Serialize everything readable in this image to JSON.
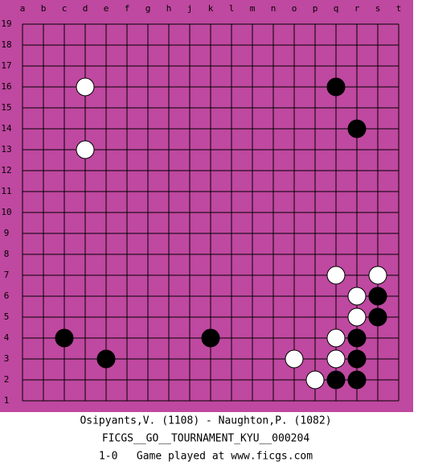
{
  "board": {
    "columns": [
      "a",
      "b",
      "c",
      "d",
      "e",
      "f",
      "g",
      "h",
      "j",
      "k",
      "l",
      "m",
      "n",
      "o",
      "p",
      "q",
      "r",
      "s",
      "t"
    ],
    "rows": [
      19,
      18,
      17,
      16,
      15,
      14,
      13,
      12,
      11,
      10,
      9,
      8,
      7,
      6,
      5,
      4,
      3,
      2,
      1
    ],
    "stones": [
      {
        "col": "d",
        "row": 16,
        "color": "white"
      },
      {
        "col": "d",
        "row": 13,
        "color": "white"
      },
      {
        "col": "q",
        "row": 16,
        "color": "black"
      },
      {
        "col": "r",
        "row": 14,
        "color": "black"
      },
      {
        "col": "q",
        "row": 7,
        "color": "white"
      },
      {
        "col": "s",
        "row": 7,
        "color": "white"
      },
      {
        "col": "r",
        "row": 6,
        "color": "white"
      },
      {
        "col": "s",
        "row": 6,
        "color": "black"
      },
      {
        "col": "r",
        "row": 5,
        "color": "white"
      },
      {
        "col": "s",
        "row": 5,
        "color": "black"
      },
      {
        "col": "c",
        "row": 4,
        "color": "black"
      },
      {
        "col": "k",
        "row": 4,
        "color": "black"
      },
      {
        "col": "q",
        "row": 4,
        "color": "white"
      },
      {
        "col": "r",
        "row": 4,
        "color": "black"
      },
      {
        "col": "e",
        "row": 3,
        "color": "black"
      },
      {
        "col": "o",
        "row": 3,
        "color": "white"
      },
      {
        "col": "q",
        "row": 3,
        "color": "white"
      },
      {
        "col": "r",
        "row": 3,
        "color": "black"
      },
      {
        "col": "p",
        "row": 2,
        "color": "white"
      },
      {
        "col": "q",
        "row": 2,
        "color": "black"
      },
      {
        "col": "r",
        "row": 2,
        "color": "black"
      }
    ]
  },
  "footer": [
    "Osipyants,V. (1108) - Naughton,P. (1082)",
    "FICGS__GO__TOURNAMENT_KYU__000204",
    "1-0   Game played at www.ficgs.com"
  ]
}
